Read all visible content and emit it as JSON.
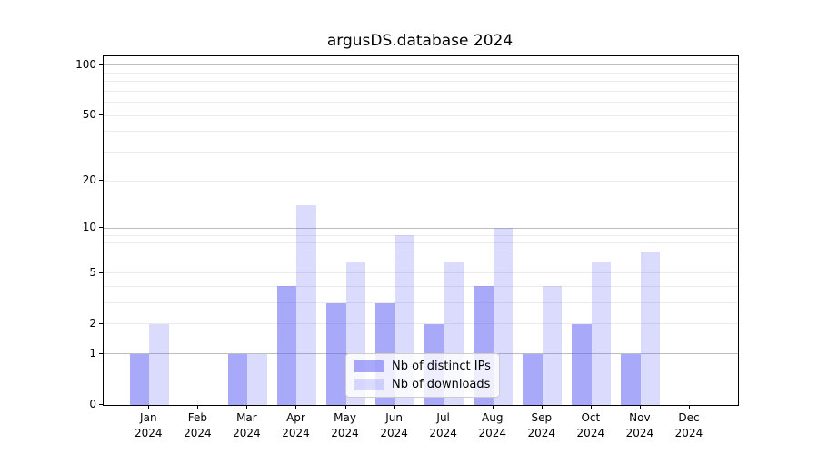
{
  "title": "argusDS.database 2024",
  "chart_data": {
    "type": "bar",
    "title": "argusDS.database 2024",
    "categories": [
      "Jan",
      "Feb",
      "Mar",
      "Apr",
      "May",
      "Jun",
      "Jul",
      "Aug",
      "Sep",
      "Oct",
      "Nov",
      "Dec"
    ],
    "year": "2024",
    "series": [
      {
        "name": "Nb of distinct IPs",
        "color": "#6666f5",
        "alpha": 0.56,
        "values": [
          1,
          0,
          1,
          4,
          3,
          3,
          2,
          4,
          1,
          2,
          1,
          0
        ]
      },
      {
        "name": "Nb of downloads",
        "color": "#6666f5",
        "alpha": 0.235,
        "values": [
          2,
          0,
          1,
          14,
          6,
          9,
          6,
          10,
          4,
          6,
          7,
          0
        ]
      }
    ],
    "yscale": "log1p",
    "ytick_labels": [
      0,
      1,
      2,
      5,
      10,
      20,
      50,
      100
    ],
    "ylim": [
      0,
      113
    ],
    "grid": {
      "major": [
        1,
        10,
        100
      ],
      "minor": [
        2,
        3,
        4,
        5,
        6,
        7,
        8,
        9,
        20,
        30,
        40,
        50,
        60,
        70,
        80,
        90
      ],
      "major_color": "#bdbdbd",
      "minor_color": "#ebebeb"
    },
    "legend": {
      "position": "lower center"
    }
  }
}
